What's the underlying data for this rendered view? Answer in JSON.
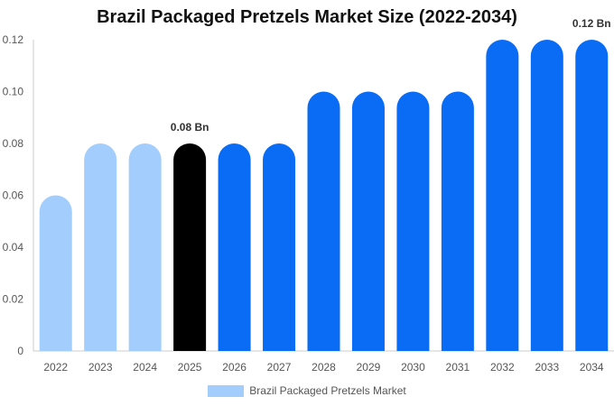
{
  "chart_data": {
    "type": "bar",
    "title": "Brazil Packaged Pretzels Market Size (2022-2034)",
    "categories": [
      "2022",
      "2023",
      "2024",
      "2025",
      "2026",
      "2027",
      "2028",
      "2029",
      "2030",
      "2031",
      "2032",
      "2033",
      "2034"
    ],
    "series": [
      {
        "name": "Brazil Packaged Pretzels Market",
        "values": [
          0.06,
          0.08,
          0.08,
          0.08,
          0.08,
          0.08,
          0.1,
          0.1,
          0.1,
          0.1,
          0.12,
          0.12,
          0.12
        ]
      }
    ],
    "bar_colors": [
      "#a3cdfd",
      "#a3cdfd",
      "#a3cdfd",
      "#000000",
      "#0a6cf5",
      "#0a6cf5",
      "#0a6cf5",
      "#0a6cf5",
      "#0a6cf5",
      "#0a6cf5",
      "#0a6cf5",
      "#0a6cf5",
      "#0a6cf5"
    ],
    "data_labels": [
      {
        "category": "2025",
        "text": "0.08 Bn"
      },
      {
        "category": "2034",
        "text": "0.12 Bn"
      }
    ],
    "y_ticks": [
      "0",
      "0.02",
      "0.04",
      "0.06",
      "0.08",
      "0.10",
      "0.12"
    ],
    "ylim": [
      0,
      0.12
    ],
    "xlabel": "",
    "ylabel": "",
    "grid": false,
    "legend_position": "bottom",
    "legend_color": "#a3cdfd"
  }
}
